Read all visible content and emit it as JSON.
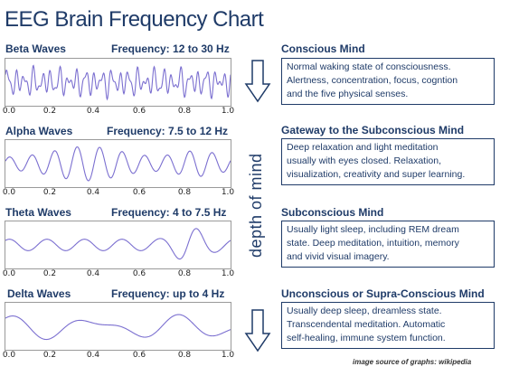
{
  "title": "EEG Brain Frequency Chart",
  "side_label": "depth of mind",
  "source": "image source of graphs: wikipedia",
  "tick_labels": [
    "0.0",
    "0.2",
    "0.4",
    "0.6",
    "0.8",
    "1.0"
  ],
  "colors": {
    "text": "#1f3b68",
    "wave": "#7b6fd0",
    "frame": "#9a9a9a",
    "arrow": "#1f3b68"
  },
  "waves": [
    {
      "name": "Beta Waves",
      "freq": "Frequency: 12 to 30 Hz"
    },
    {
      "name": "Alpha Waves",
      "freq": "Frequency: 7.5 to 12 Hz"
    },
    {
      "name": "Theta Waves",
      "freq": "Frequency: 4 to 7.5 Hz"
    },
    {
      "name": "Delta Waves",
      "freq": "Frequency: up to 4 Hz"
    }
  ],
  "sections": [
    {
      "title": "Conscious Mind",
      "lines": [
        "Normal waking state of consciousness.",
        "Alertness, concentration, focus, cogntion",
        "and the five physical senses."
      ]
    },
    {
      "title": "Gateway to the Subconscious Mind",
      "lines": [
        "Deep relaxation and light meditation",
        "usually with eyes closed. Relaxation,",
        "visualization, creativity and super learning."
      ]
    },
    {
      "title": "Subconscious Mind",
      "lines": [
        "Usually light sleep, including REM dream",
        "state. Deep meditation, intuition, memory",
        "and vivid visual imagery."
      ]
    },
    {
      "title": "Unconscious or Supra-Conscious Mind",
      "lines": [
        "Usually deep sleep, dreamless state.",
        "Transcendental meditation. Automatic",
        "self-healing, immune system function."
      ]
    }
  ]
}
